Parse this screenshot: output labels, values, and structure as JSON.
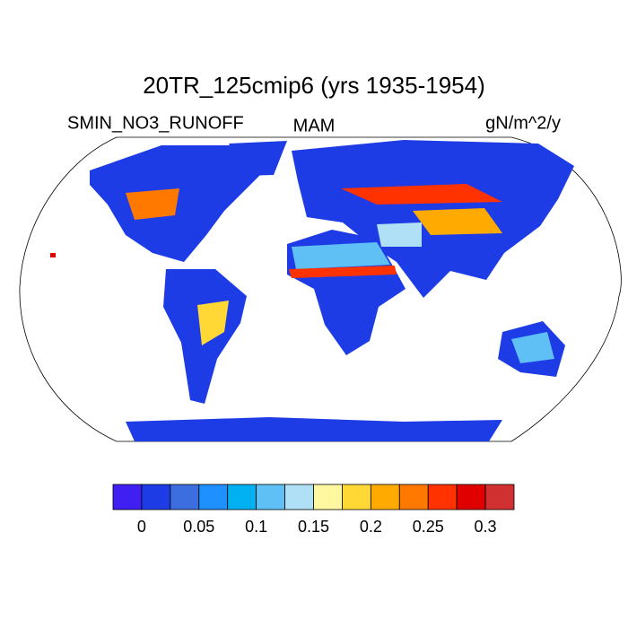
{
  "title": "20TR_125cmip6 (yrs 1935-1954)",
  "subtitle_left": "SMIN_NO3_RUNOFF",
  "subtitle_center": "MAM",
  "subtitle_right": "gN/m^2/y",
  "colorbar": {
    "colors": [
      "#3f1ff2",
      "#1e3ce6",
      "#3c6ee0",
      "#1e90ff",
      "#00b0f0",
      "#5ec0f5",
      "#b0e0f5",
      "#fff8a0",
      "#ffd835",
      "#ffaa00",
      "#ff7800",
      "#ff3200",
      "#e00000",
      "#d03030"
    ],
    "ticks": [
      0,
      0.05,
      0.1,
      0.15,
      0.2,
      0.25,
      0.3
    ]
  }
}
